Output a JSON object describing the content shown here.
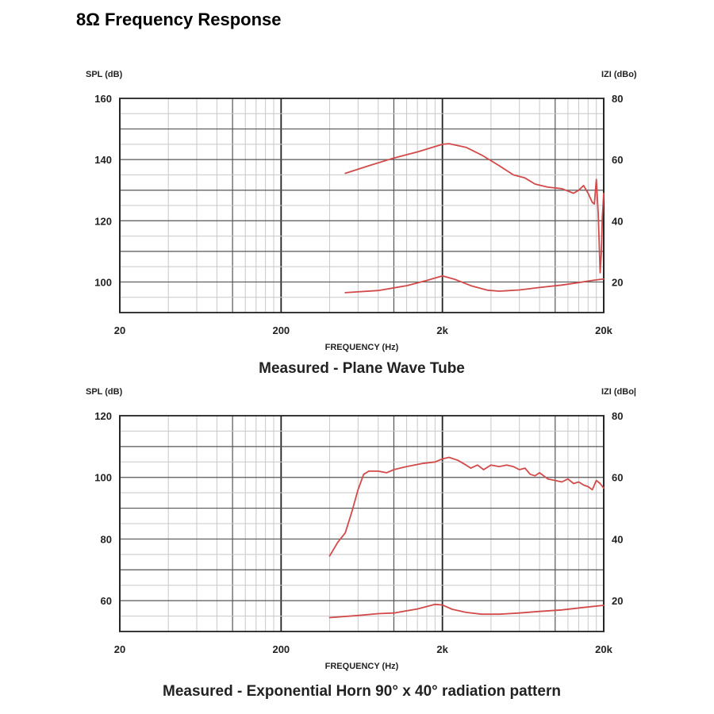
{
  "page": {
    "title": "8Ω Frequency Response"
  },
  "chart_data": [
    {
      "type": "line",
      "caption": "Measured - Plane Wave Tube",
      "xlabel": "FREQUENCY (Hz)",
      "ylabel": "SPL (dB)",
      "y2label": "IZI (dBo)",
      "x_scale": "log",
      "xlim": [
        20,
        20000
      ],
      "ylim": [
        90,
        160
      ],
      "y2lim": [
        10,
        80
      ],
      "x_ticks": [
        20,
        200,
        2000,
        20000
      ],
      "x_tick_labels": [
        "20",
        "200",
        "2k",
        "20k"
      ],
      "y_ticks": [
        100,
        120,
        140,
        160
      ],
      "y_tick_labels": [
        "100",
        "120",
        "140",
        "160"
      ],
      "y2_ticks": [
        20,
        40,
        60,
        80
      ],
      "y2_tick_labels": [
        "20",
        "40",
        "60",
        "80"
      ],
      "grid": true,
      "series": [
        {
          "axis": "left",
          "color": "#d24a4a",
          "x": [
            500,
            700,
            1000,
            1400,
            2000,
            2200,
            2800,
            3500,
            4500,
            5500,
            6000,
            6500,
            7500,
            9000,
            11000,
            13000,
            14000,
            15000,
            16000,
            17000,
            17500,
            18000,
            18500,
            19000,
            19300,
            19600,
            20000
          ],
          "y": [
            135.5,
            138,
            140.5,
            142.5,
            145,
            145.2,
            144,
            141.5,
            138,
            135,
            134.5,
            134,
            132,
            131,
            130.5,
            129,
            130,
            131.5,
            129,
            126,
            125.5,
            133.5,
            122,
            103,
            109,
            121,
            129
          ]
        },
        {
          "axis": "right",
          "color": "#d24a4a",
          "x": [
            500,
            800,
            1200,
            1600,
            2000,
            2400,
            3000,
            3800,
            4500,
            6000,
            8000,
            11000,
            14000,
            17000,
            20000
          ],
          "y": [
            16.5,
            17.2,
            18.8,
            20.5,
            22,
            20.8,
            18.8,
            17.3,
            17,
            17.4,
            18.2,
            19,
            19.8,
            20.5,
            21
          ]
        }
      ]
    },
    {
      "type": "line",
      "caption": "Measured - Exponential Horn 90° x 40° radiation pattern",
      "xlabel": "FREQUENCY (Hz)",
      "ylabel": "SPL (dB)",
      "y2label": "IZI (dBo|",
      "x_scale": "log",
      "xlim": [
        20,
        20000
      ],
      "ylim": [
        50,
        120
      ],
      "y2lim": [
        10,
        80
      ],
      "x_ticks": [
        20,
        200,
        2000,
        20000
      ],
      "x_tick_labels": [
        "20",
        "200",
        "2k",
        "20k"
      ],
      "y_ticks": [
        60,
        80,
        100,
        120
      ],
      "y_tick_labels": [
        "60",
        "80",
        "100",
        "120"
      ],
      "y2_ticks": [
        20,
        40,
        60,
        80
      ],
      "y2_tick_labels": [
        "20",
        "40",
        "60",
        "80"
      ],
      "grid": true,
      "series": [
        {
          "axis": "left",
          "color": "#d24a4a",
          "x": [
            400,
            450,
            500,
            550,
            600,
            650,
            700,
            800,
            900,
            1000,
            1200,
            1500,
            1800,
            2000,
            2200,
            2500,
            2800,
            3000,
            3300,
            3600,
            4000,
            4500,
            5000,
            5500,
            6000,
            6500,
            7000,
            7500,
            8000,
            9000,
            10000,
            11000,
            12000,
            13000,
            14000,
            15000,
            16000,
            17000,
            18000,
            19000,
            20000
          ],
          "y": [
            74.5,
            79,
            82,
            89,
            96,
            101,
            102,
            102,
            101.5,
            102.5,
            103.5,
            104.5,
            105,
            106,
            106.5,
            105.5,
            104,
            103,
            104,
            102.5,
            104,
            103.5,
            104,
            103.5,
            102.5,
            103,
            101,
            100.5,
            101.5,
            99.5,
            99,
            98.5,
            99.5,
            98,
            98.5,
            97.5,
            97,
            96,
            99,
            98,
            96.5
          ]
        },
        {
          "axis": "right",
          "color": "#d24a4a",
          "x": [
            400,
            600,
            800,
            1000,
            1400,
            1800,
            2000,
            2300,
            2800,
            3500,
            4500,
            6000,
            8000,
            11000,
            15000,
            20000
          ],
          "y": [
            14.5,
            15.2,
            15.8,
            16,
            17.3,
            18.8,
            18.6,
            17.2,
            16.2,
            15.6,
            15.6,
            16,
            16.5,
            17,
            17.8,
            18.5
          ]
        }
      ]
    }
  ]
}
